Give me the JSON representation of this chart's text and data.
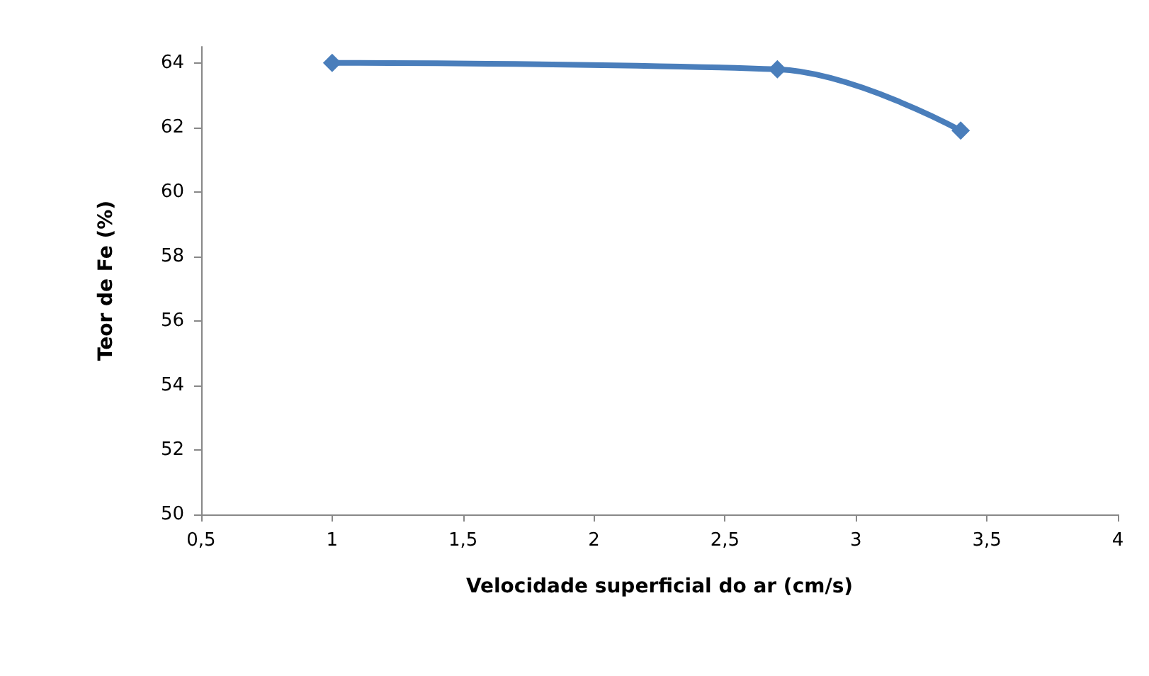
{
  "chart_data": {
    "type": "line",
    "xlabel": "Velocidade superficial do ar (cm/s)",
    "ylabel": "Teor de Fe (%)",
    "x": [
      1.0,
      2.7,
      3.4
    ],
    "series": [
      {
        "color": "#4a7ebb",
        "values": [
          64,
          63.8,
          61.9
        ]
      }
    ],
    "xlim": [
      0.5,
      4
    ],
    "xticks": [
      {
        "value": 0.5,
        "label": "0,5"
      },
      1,
      {
        "value": 1.5,
        "label": "1,5"
      },
      2,
      {
        "value": 2.5,
        "label": "2,5"
      },
      3,
      {
        "value": 3.5,
        "label": "3,5"
      },
      4
    ],
    "ylim": [
      50,
      64.5
    ],
    "yticks": [
      50,
      52,
      54,
      56,
      58,
      60,
      62,
      64
    ],
    "grid": false,
    "marker": "diamond",
    "line_style": "solid"
  }
}
